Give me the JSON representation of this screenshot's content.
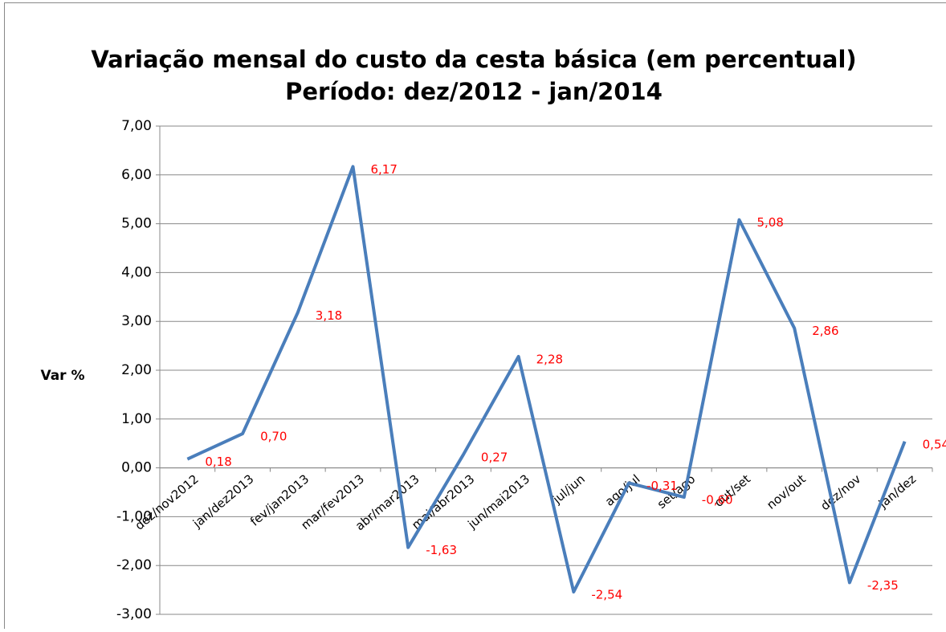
{
  "chart_data": {
    "type": "line",
    "title": "Variação mensal do custo da cesta básica (em percentual)",
    "subtitle": "Período: dez/2012 - jan/2014",
    "y_label": "Var %",
    "categories": [
      "dez/nov2012",
      "jan/dez2013",
      "fev/jan2013",
      "mar/fev2013",
      "abr/mar2013",
      "mai/abr2013",
      "jun/mai2013",
      "jul/jun",
      "ago/jul",
      "set/ago",
      "out/set",
      "nov/out",
      "dez/nov",
      "jan/dez"
    ],
    "series": [
      {
        "name": "Var %",
        "color": "#4a7ebb",
        "values": [
          0.18,
          0.7,
          3.18,
          6.17,
          -1.63,
          0.27,
          2.28,
          -2.54,
          -0.31,
          -0.6,
          5.08,
          2.86,
          -2.35,
          0.54
        ],
        "value_labels": [
          "0,18",
          "0,70",
          "3,18",
          "6,17",
          "-1,63",
          "0,27",
          "2,28",
          "-2,54",
          "-0,31",
          "-0,60",
          "5,08",
          "2,86",
          "-2,35",
          "0,54"
        ],
        "label_color": "#ff0000"
      }
    ],
    "ylim": [
      -3,
      7
    ],
    "yticks": [
      {
        "value": -3,
        "label": "-3,00"
      },
      {
        "value": -2,
        "label": "-2,00"
      },
      {
        "value": -1,
        "label": "-1,00"
      },
      {
        "value": 0,
        "label": "0,00"
      },
      {
        "value": 1,
        "label": "1,00"
      },
      {
        "value": 2,
        "label": "2,00"
      },
      {
        "value": 3,
        "label": "3,00"
      },
      {
        "value": 4,
        "label": "4,00"
      },
      {
        "value": 5,
        "label": "5,00"
      },
      {
        "value": 6,
        "label": "6,00"
      },
      {
        "value": 7,
        "label": "7,00"
      }
    ],
    "grid": true
  }
}
